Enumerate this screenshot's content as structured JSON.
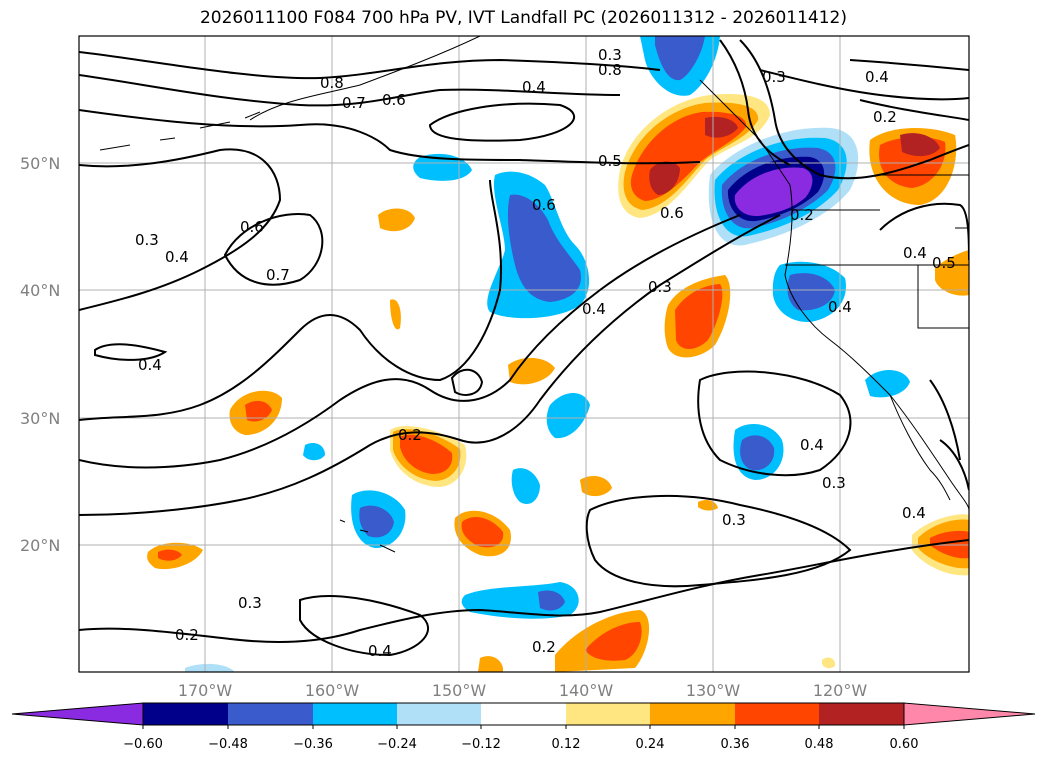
{
  "title": "2026011100 F084 700 hPa PV, IVT Landfall PC (2026011312 - 2026011412)",
  "lat_labels": [
    "50°N",
    "40°N",
    "30°N",
    "20°N"
  ],
  "lon_labels": [
    "170°W",
    "160°W",
    "150°W",
    "140°W",
    "130°W",
    "120°W"
  ],
  "contour_labels": [
    "0.8",
    "0.7",
    "0.6",
    "0.4",
    "0.5",
    "0.3",
    "0.4",
    "0.2",
    "0.6",
    "0.2",
    "0.6",
    "0.7",
    "0.4",
    "0.3",
    "0.4",
    "0.3",
    "0.4",
    "0.2",
    "0.3",
    "0.4",
    "0.3",
    "0.2",
    "0.3",
    "0.4",
    "0.2",
    "0.3",
    "0.4",
    "0.4",
    "0.5",
    "0.4",
    "0.8",
    "0.6"
  ],
  "colorbar": {
    "ticks": [
      "−0.60",
      "−0.48",
      "−0.36",
      "−0.24",
      "−0.12",
      "0.12",
      "0.24",
      "0.36",
      "0.48",
      "0.60"
    ],
    "colors": [
      "#8a2be2",
      "#00008b",
      "#3a5bcc",
      "#00bfff",
      "#b0e0f8",
      "#ffffff",
      "#ffe680",
      "#ffa500",
      "#ff4500",
      "#b22222",
      "#ff88aa"
    ]
  },
  "fill_colors": {
    "neg_light": "#b0e0f8",
    "neg1": "#00bfff",
    "neg2": "#3a5bcc",
    "neg3": "#00008b",
    "neg4": "#8a2be2",
    "pos_light": "#ffe680",
    "pos1": "#ffa500",
    "pos2": "#ff4500",
    "pos3": "#b22222"
  }
}
